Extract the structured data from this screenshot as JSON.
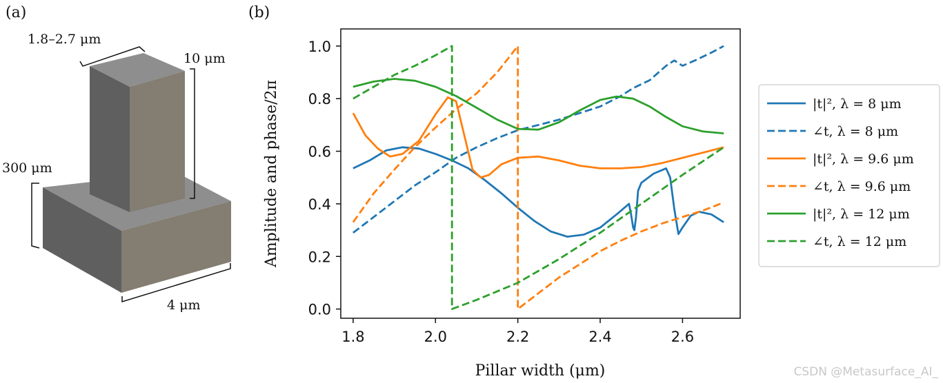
{
  "panel_a": {
    "label": "(a)",
    "dims": {
      "pillar_width": "1.8–2.7 μm",
      "pillar_height": "10 μm",
      "base_height": "300 μm",
      "base_width": "4 μm"
    },
    "colors": {
      "top": "#8e8e8e",
      "left": "#5f5f5f",
      "right": "#837d72"
    }
  },
  "panel_b_label": "(b)",
  "watermark": "CSDN @Metasurface_AI_",
  "chart_data": {
    "type": "line",
    "xlabel": "Pillar width (μm)",
    "ylabel": "Amplitude and phase/2π",
    "xlim": [
      1.77,
      2.74
    ],
    "ylim": [
      -0.035,
      1.065
    ],
    "xticks": [
      "1.8",
      "2.0",
      "2.2",
      "2.4",
      "2.6"
    ],
    "xtick_values": [
      1.8,
      2.0,
      2.2,
      2.4,
      2.6
    ],
    "yticks": [
      "0.0",
      "0.2",
      "0.4",
      "0.6",
      "0.8",
      "1.0"
    ],
    "ytick_values": [
      0.0,
      0.2,
      0.4,
      0.6,
      0.8,
      1.0
    ],
    "grid": false,
    "legend_position": "outside-right",
    "series": [
      {
        "name": "|t|², λ = 8 μm",
        "color": "#1f77b4",
        "dash": false,
        "points": [
          [
            1.8,
            0.535
          ],
          [
            1.84,
            0.565
          ],
          [
            1.88,
            0.603
          ],
          [
            1.92,
            0.615
          ],
          [
            1.96,
            0.61
          ],
          [
            2.0,
            0.59
          ],
          [
            2.04,
            0.565
          ],
          [
            2.08,
            0.535
          ],
          [
            2.12,
            0.49
          ],
          [
            2.16,
            0.44
          ],
          [
            2.2,
            0.385
          ],
          [
            2.24,
            0.335
          ],
          [
            2.28,
            0.295
          ],
          [
            2.32,
            0.275
          ],
          [
            2.36,
            0.283
          ],
          [
            2.4,
            0.31
          ],
          [
            2.44,
            0.36
          ],
          [
            2.47,
            0.4
          ],
          [
            2.475,
            0.36
          ],
          [
            2.48,
            0.31
          ],
          [
            2.483,
            0.3
          ],
          [
            2.487,
            0.35
          ],
          [
            2.492,
            0.45
          ],
          [
            2.5,
            0.48
          ],
          [
            2.53,
            0.515
          ],
          [
            2.56,
            0.535
          ],
          [
            2.57,
            0.5
          ],
          [
            2.58,
            0.38
          ],
          [
            2.59,
            0.285
          ],
          [
            2.6,
            0.31
          ],
          [
            2.62,
            0.355
          ],
          [
            2.64,
            0.37
          ],
          [
            2.67,
            0.36
          ],
          [
            2.7,
            0.33
          ]
        ]
      },
      {
        "name": "∠t, λ = 8 μm",
        "color": "#1f77b4",
        "dash": true,
        "points": [
          [
            1.8,
            0.29
          ],
          [
            1.85,
            0.35
          ],
          [
            1.9,
            0.41
          ],
          [
            1.95,
            0.47
          ],
          [
            2.0,
            0.52
          ],
          [
            2.05,
            0.575
          ],
          [
            2.1,
            0.615
          ],
          [
            2.15,
            0.65
          ],
          [
            2.2,
            0.68
          ],
          [
            2.25,
            0.7
          ],
          [
            2.3,
            0.72
          ],
          [
            2.35,
            0.745
          ],
          [
            2.4,
            0.77
          ],
          [
            2.45,
            0.81
          ],
          [
            2.48,
            0.84
          ],
          [
            2.52,
            0.87
          ],
          [
            2.56,
            0.925
          ],
          [
            2.58,
            0.945
          ],
          [
            2.6,
            0.925
          ],
          [
            2.63,
            0.945
          ],
          [
            2.67,
            0.975
          ],
          [
            2.7,
            1.0
          ]
        ]
      },
      {
        "name": "|t|², λ = 9.6 μm",
        "color": "#ff7f0e",
        "dash": false,
        "points": [
          [
            1.8,
            0.745
          ],
          [
            1.83,
            0.66
          ],
          [
            1.86,
            0.61
          ],
          [
            1.89,
            0.58
          ],
          [
            1.92,
            0.59
          ],
          [
            1.96,
            0.64
          ],
          [
            2.0,
            0.74
          ],
          [
            2.03,
            0.805
          ],
          [
            2.05,
            0.79
          ],
          [
            2.07,
            0.66
          ],
          [
            2.09,
            0.53
          ],
          [
            2.11,
            0.5
          ],
          [
            2.13,
            0.51
          ],
          [
            2.16,
            0.55
          ],
          [
            2.2,
            0.575
          ],
          [
            2.25,
            0.58
          ],
          [
            2.3,
            0.565
          ],
          [
            2.35,
            0.545
          ],
          [
            2.4,
            0.535
          ],
          [
            2.45,
            0.535
          ],
          [
            2.5,
            0.54
          ],
          [
            2.55,
            0.555
          ],
          [
            2.6,
            0.575
          ],
          [
            2.65,
            0.595
          ],
          [
            2.7,
            0.615
          ]
        ]
      },
      {
        "name": "∠t, λ = 9.6 μm",
        "color": "#ff7f0e",
        "dash": true,
        "points": [
          [
            1.8,
            0.33
          ],
          [
            1.85,
            0.44
          ],
          [
            1.9,
            0.53
          ],
          [
            1.95,
            0.615
          ],
          [
            2.0,
            0.69
          ],
          [
            2.05,
            0.76
          ],
          [
            2.1,
            0.82
          ],
          [
            2.15,
            0.9
          ],
          [
            2.2,
            1.0
          ],
          [
            2.2,
            0.0
          ],
          [
            2.25,
            0.06
          ],
          [
            2.3,
            0.12
          ],
          [
            2.35,
            0.17
          ],
          [
            2.4,
            0.22
          ],
          [
            2.45,
            0.26
          ],
          [
            2.5,
            0.295
          ],
          [
            2.55,
            0.325
          ],
          [
            2.6,
            0.35
          ],
          [
            2.65,
            0.375
          ],
          [
            2.7,
            0.405
          ]
        ]
      },
      {
        "name": "|t|², λ = 12 μm",
        "color": "#2ca02c",
        "dash": false,
        "points": [
          [
            1.8,
            0.845
          ],
          [
            1.85,
            0.865
          ],
          [
            1.9,
            0.875
          ],
          [
            1.95,
            0.868
          ],
          [
            2.0,
            0.845
          ],
          [
            2.05,
            0.81
          ],
          [
            2.1,
            0.765
          ],
          [
            2.15,
            0.72
          ],
          [
            2.2,
            0.685
          ],
          [
            2.25,
            0.682
          ],
          [
            2.3,
            0.71
          ],
          [
            2.35,
            0.755
          ],
          [
            2.4,
            0.795
          ],
          [
            2.44,
            0.808
          ],
          [
            2.48,
            0.8
          ],
          [
            2.52,
            0.77
          ],
          [
            2.56,
            0.73
          ],
          [
            2.6,
            0.695
          ],
          [
            2.65,
            0.675
          ],
          [
            2.7,
            0.668
          ]
        ]
      },
      {
        "name": "∠t, λ = 12 μm",
        "color": "#2ca02c",
        "dash": true,
        "points": [
          [
            1.8,
            0.8
          ],
          [
            1.85,
            0.845
          ],
          [
            1.9,
            0.89
          ],
          [
            1.95,
            0.925
          ],
          [
            2.0,
            0.965
          ],
          [
            2.04,
            1.0
          ],
          [
            2.04,
            0.0
          ],
          [
            2.1,
            0.035
          ],
          [
            2.2,
            0.1
          ],
          [
            2.3,
            0.19
          ],
          [
            2.4,
            0.29
          ],
          [
            2.5,
            0.4
          ],
          [
            2.6,
            0.51
          ],
          [
            2.7,
            0.615
          ]
        ]
      }
    ]
  }
}
